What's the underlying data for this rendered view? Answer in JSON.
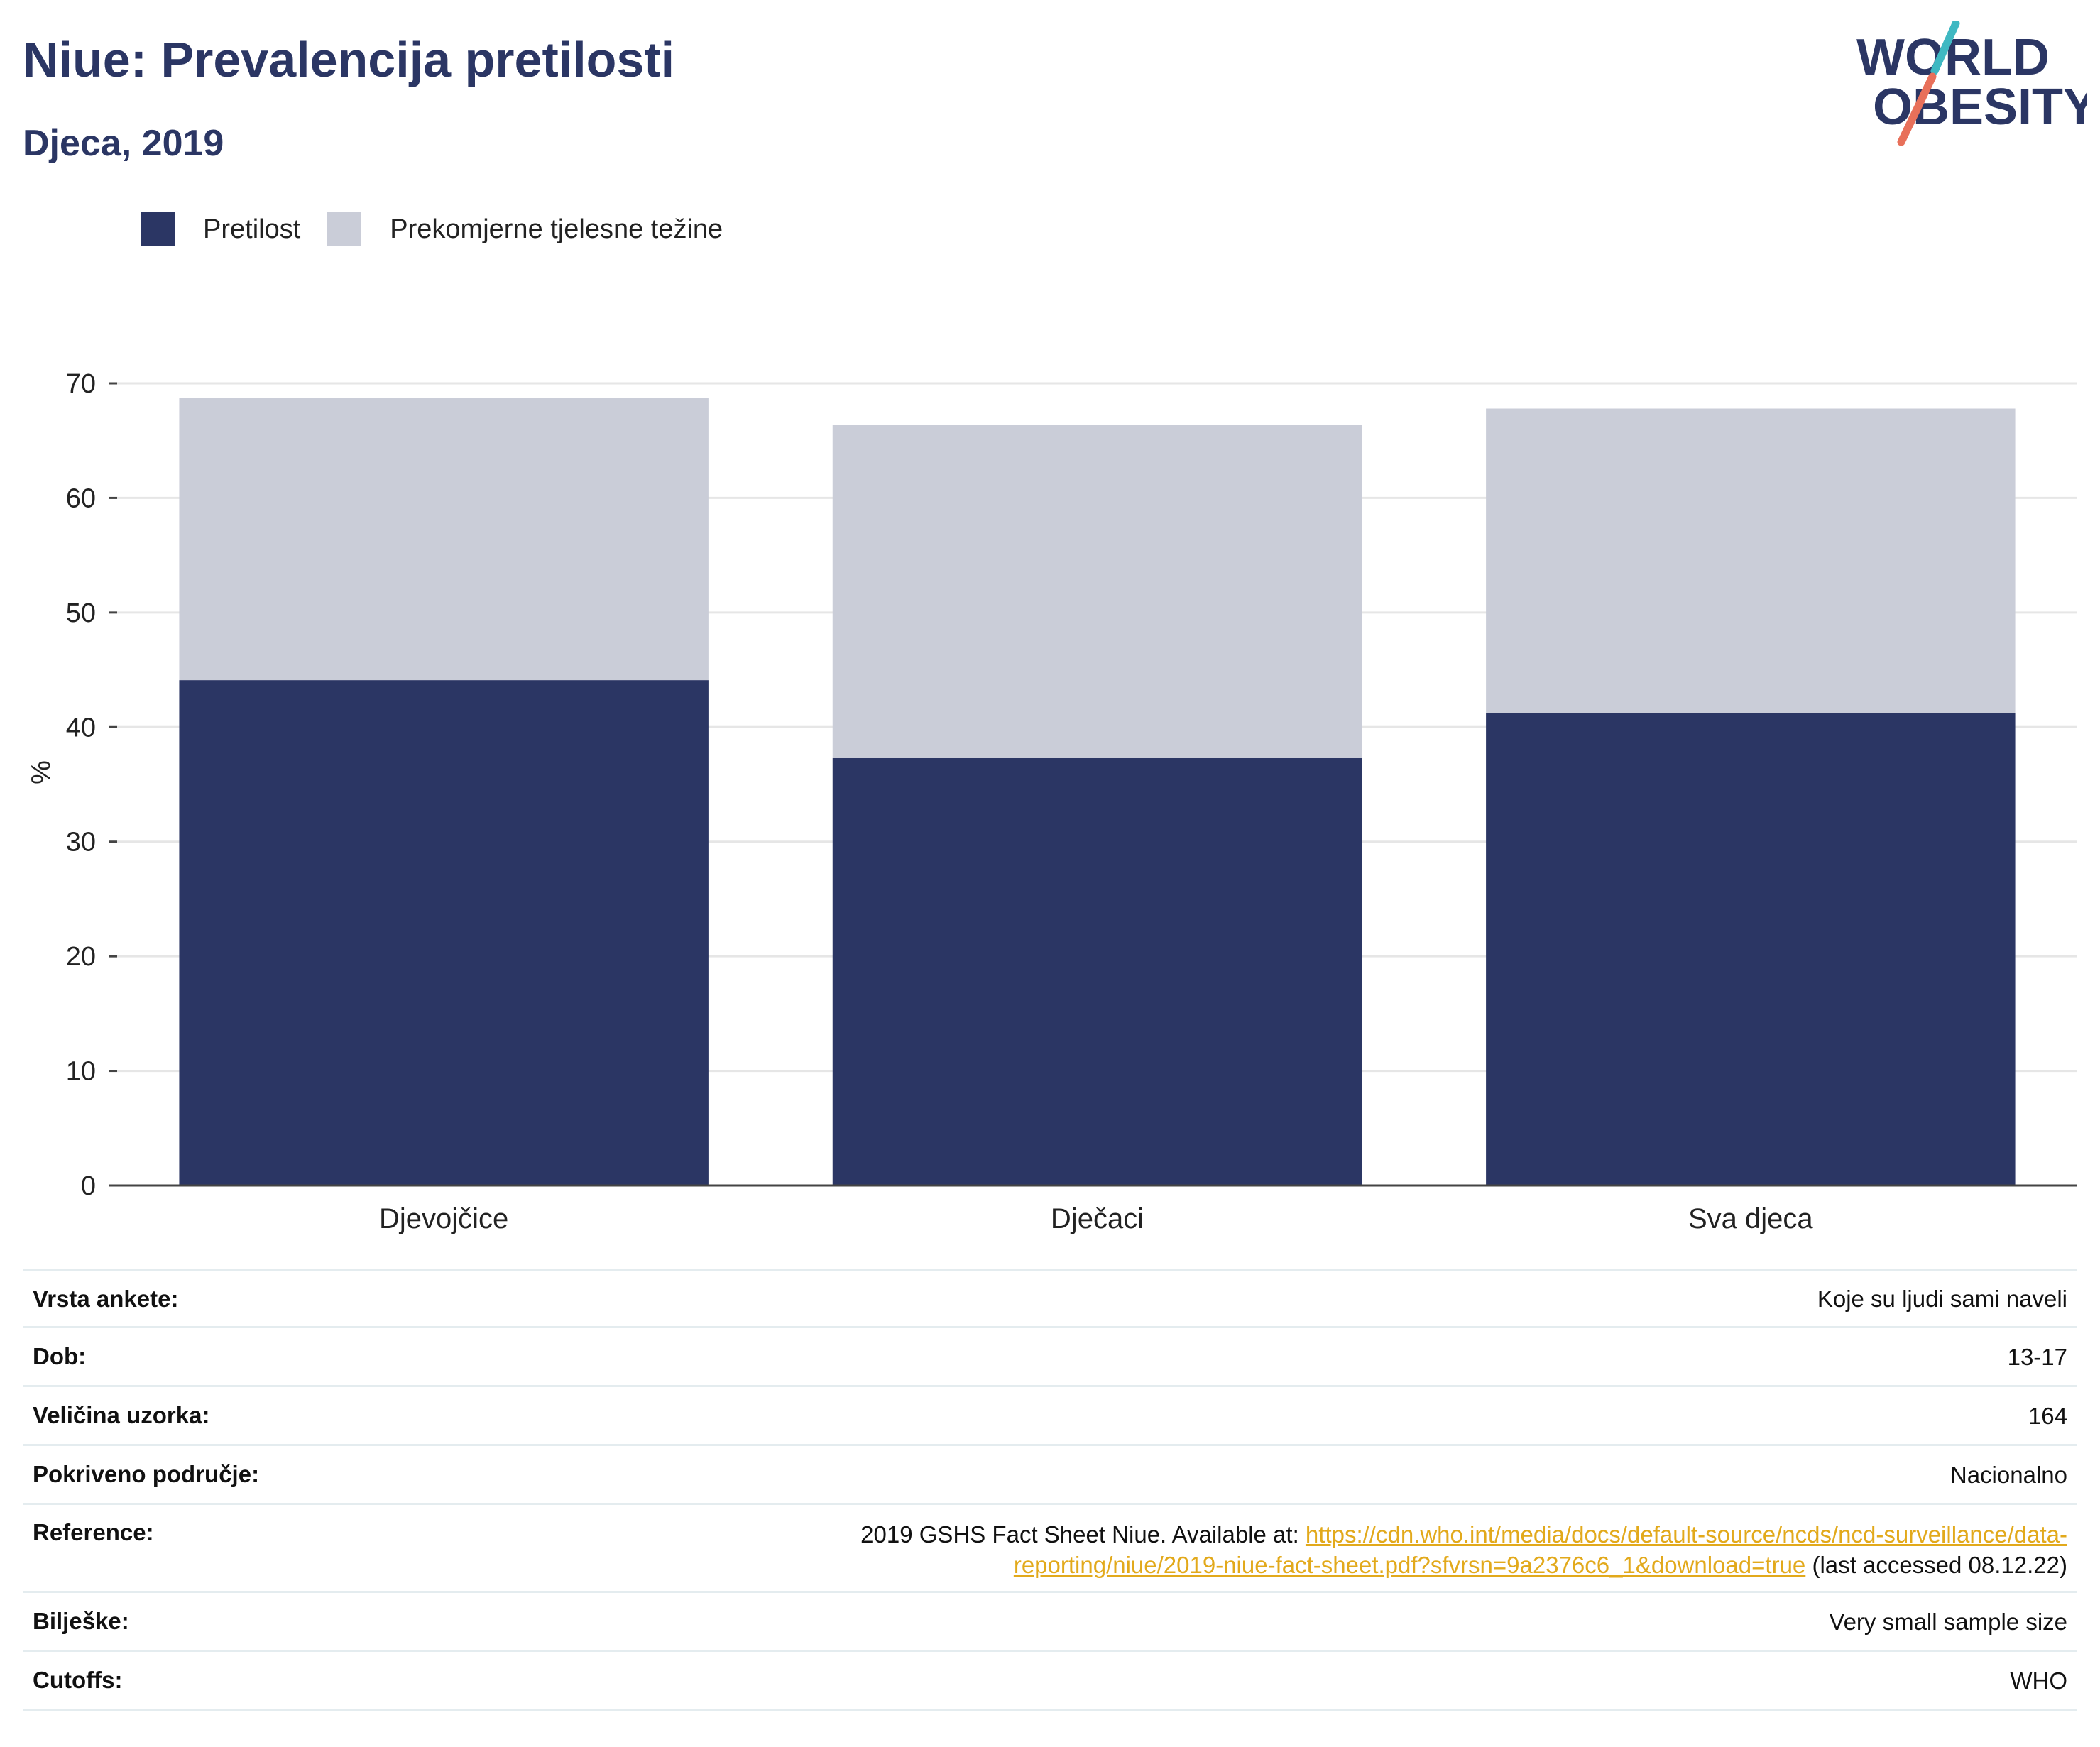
{
  "header": {
    "title": "Niue: Prevalencija pretilosti",
    "subtitle": "Djeca, 2019",
    "logo_line1": "WORLD",
    "logo_line2": "OBESITY"
  },
  "legend": {
    "items": [
      {
        "label": "Pretilost",
        "color": "#2b3664"
      },
      {
        "label": "Prekomjerne tjelesne težine",
        "color": "#cacdd8"
      }
    ]
  },
  "chart_data": {
    "type": "bar",
    "stacked": true,
    "categories": [
      "Djevojčice",
      "Dječaci",
      "Sva djeca"
    ],
    "series": [
      {
        "name": "Pretilost",
        "color": "#2b3664",
        "values": [
          44.1,
          37.3,
          41.2
        ]
      },
      {
        "name": "Prekomjerne tjelesne težine",
        "color": "#cacdd8",
        "values": [
          24.6,
          29.1,
          26.6
        ]
      }
    ],
    "ylabel": "%",
    "ylim": [
      0,
      70
    ],
    "yticks": [
      0,
      10,
      20,
      30,
      40,
      50,
      60,
      70
    ],
    "grid": true,
    "legend_position": "top-left"
  },
  "meta": {
    "rows": [
      {
        "label": "Vrsta ankete:",
        "value": "Koje su ljudi sami naveli"
      },
      {
        "label": "Dob:",
        "value": "13-17"
      },
      {
        "label": "Veličina uzorka:",
        "value": "164"
      },
      {
        "label": "Pokriveno područje:",
        "value": "Nacionalno"
      },
      {
        "label": "Bilješke:",
        "value": "Very small sample size"
      },
      {
        "label": "Cutoffs:",
        "value": "WHO"
      }
    ],
    "reference": {
      "label": "Reference:",
      "prefix": "2019 GSHS Fact Sheet Niue. Available at: ",
      "link_line1": "https://cdn.who.int/media/docs/default-source/ncds/ncd-surveillance/data-",
      "link_line2": "reporting/niue/2019-niue-fact-sheet.pdf?sfvrsn=9a2376c6_1&download=true",
      "suffix": " (last accessed 08.12.22)"
    }
  },
  "colors": {
    "brand_navy": "#2b3664",
    "overweight_gray": "#cacdd8",
    "link_yellow": "#e2a91b",
    "logo_teal": "#3fb8c2",
    "logo_coral": "#e8705a"
  }
}
